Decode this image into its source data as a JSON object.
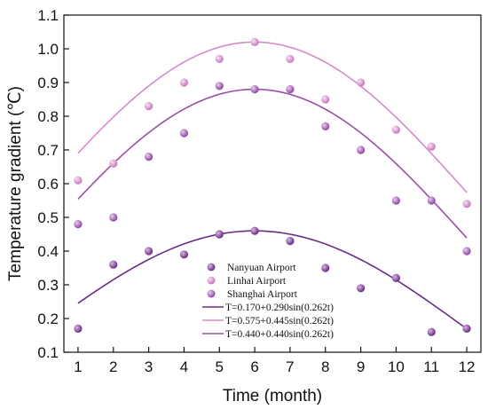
{
  "chart_data": {
    "type": "scatter",
    "xlabel": "Time (month)",
    "ylabel": "Temperature gradient (℃)",
    "xlim": [
      0.6,
      12.4
    ],
    "ylim": [
      0.1,
      1.1
    ],
    "x_ticks": [
      "1",
      "2",
      "3",
      "4",
      "5",
      "6",
      "7",
      "8",
      "9",
      "10",
      "11",
      "12"
    ],
    "y_ticks": [
      "0.1",
      "0.2",
      "0.3",
      "0.4",
      "0.5",
      "0.6",
      "0.7",
      "0.8",
      "0.9",
      "1.0",
      "1.1"
    ],
    "grid": false,
    "legend_position": "bottom-center",
    "x": [
      1,
      2,
      3,
      4,
      5,
      6,
      7,
      8,
      9,
      10,
      11,
      12
    ],
    "series": [
      {
        "name": "Nanyuan Airport",
        "color": "#7a3f8f",
        "values": [
          0.17,
          0.36,
          0.4,
          0.39,
          0.45,
          0.46,
          0.43,
          0.35,
          0.29,
          0.32,
          0.16,
          0.17
        ]
      },
      {
        "name": "Linhai Airport",
        "color": "#d58bc9",
        "values": [
          0.61,
          0.66,
          0.83,
          0.9,
          0.97,
          1.02,
          0.97,
          0.85,
          0.9,
          0.76,
          0.71,
          0.54
        ]
      },
      {
        "name": "Shanghai Airport",
        "color": "#a35bb2",
        "values": [
          0.48,
          0.5,
          0.68,
          0.75,
          0.89,
          0.88,
          0.88,
          0.77,
          0.7,
          0.55,
          0.55,
          0.4
        ]
      }
    ],
    "fits": [
      {
        "label": "T=0.170+0.290sin(0.262t)",
        "color": "#6a2d86",
        "a": 0.17,
        "b": 0.29,
        "w": 0.262
      },
      {
        "label": "T=0.575+0.445sin(0.262t)",
        "color": "#d58bc9",
        "a": 0.575,
        "b": 0.445,
        "w": 0.262
      },
      {
        "label": "T=0.440+0.440sin(0.262t)",
        "color": "#9c4ea8",
        "a": 0.44,
        "b": 0.44,
        "w": 0.262
      }
    ]
  }
}
